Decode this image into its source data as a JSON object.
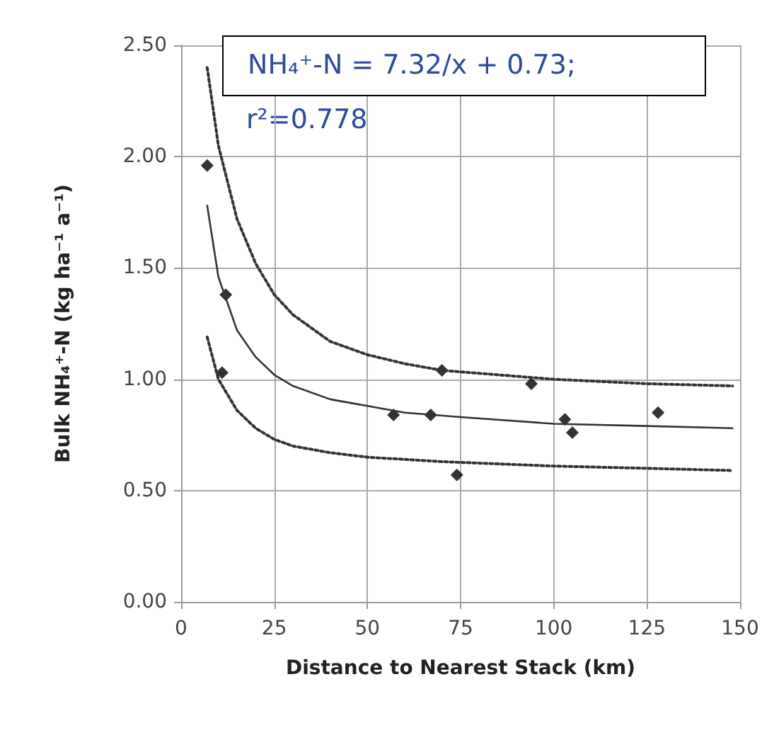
{
  "chart_data": {
    "type": "scatter",
    "xlabel": "Distance to Nearest Stack (km)",
    "ylabel": "Bulk NH₄⁺-N (kg ha⁻¹ a⁻¹)",
    "annotations": [
      "NH₄⁺-N = 7.32/x + 0.73;",
      "r²=0.778"
    ],
    "xlim": [
      0,
      150
    ],
    "xticks": [
      0,
      25,
      50,
      75,
      100,
      125,
      150
    ],
    "ylim": [
      0,
      2.5
    ],
    "yticks": [
      {
        "value": 0,
        "label": "0.00"
      },
      {
        "value": 0.5,
        "label": "0.50"
      },
      {
        "value": 1,
        "label": "1.00"
      },
      {
        "value": 1.5,
        "label": "1.50"
      },
      {
        "value": 2,
        "label": "2.00"
      },
      {
        "value": 2.5,
        "label": "2.50"
      }
    ],
    "grid": true,
    "series": [
      {
        "color": "#000000",
        "marker": "diamond",
        "x": [
          7,
          12,
          11,
          57,
          67,
          70,
          74,
          94,
          103,
          105,
          128
        ],
        "values": [
          1.96,
          1.38,
          1.03,
          0.84,
          0.84,
          1.04,
          0.57,
          0.98,
          0.82,
          0.76,
          0.85
        ]
      },
      {
        "type": "line",
        "color": "#333333",
        "marker": "none",
        "line_style": "solid",
        "x": [
          7,
          10,
          15,
          20,
          25,
          30,
          40,
          50,
          60,
          75,
          100,
          125,
          148
        ],
        "values": [
          1.78,
          1.46,
          1.22,
          1.1,
          1.02,
          0.97,
          0.91,
          0.88,
          0.85,
          0.83,
          0.8,
          0.79,
          0.78
        ]
      },
      {
        "type": "line",
        "color": "#333333",
        "marker": "none",
        "line_style": "dotted",
        "x": [
          7,
          10,
          15,
          20,
          25,
          30,
          40,
          50,
          60,
          70,
          100,
          125,
          148
        ],
        "values": [
          2.4,
          2.05,
          1.72,
          1.52,
          1.38,
          1.29,
          1.17,
          1.11,
          1.07,
          1.04,
          1.0,
          0.98,
          0.97
        ]
      },
      {
        "type": "line",
        "color": "#333333",
        "marker": "none",
        "line_style": "dotted",
        "x": [
          7,
          10,
          15,
          20,
          25,
          30,
          40,
          50,
          70,
          100,
          125,
          148
        ],
        "values": [
          1.19,
          1.0,
          0.86,
          0.78,
          0.73,
          0.7,
          0.67,
          0.65,
          0.63,
          0.61,
          0.6,
          0.59
        ]
      }
    ]
  }
}
